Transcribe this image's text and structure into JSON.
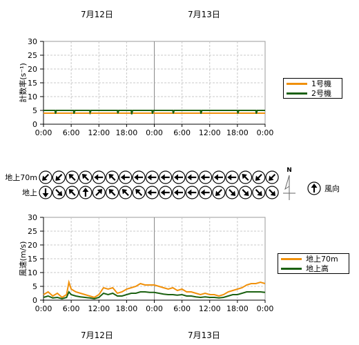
{
  "dates": {
    "top": [
      "7月12日",
      "7月13日"
    ],
    "bottom": [
      "7月12日",
      "7月13日"
    ]
  },
  "xticks": [
    "0:00",
    "6:00",
    "12:00",
    "18:00",
    "0:00",
    "6:00",
    "12:00",
    "18:00",
    "0:00"
  ],
  "wind_direction": {
    "rows": [
      {
        "label": "地上70m",
        "angles": [
          225,
          225,
          315,
          315,
          270,
          315,
          270,
          270,
          270,
          270,
          270,
          270,
          270,
          270,
          270,
          315,
          225,
          225
        ]
      },
      {
        "label": "地上",
        "angles": [
          180,
          135,
          315,
          0,
          45,
          315,
          315,
          315,
          270,
          270,
          270,
          270,
          270,
          225,
          135,
          135,
          135,
          135
        ]
      }
    ],
    "north_label": "N",
    "legend_label": "風向",
    "legend_angle": 0
  },
  "chart_data": [
    {
      "type": "line",
      "ylabel": "計数率(s⁻¹)",
      "ylim": [
        0,
        30
      ],
      "yticks": [
        0,
        5,
        10,
        15,
        20,
        25,
        30
      ],
      "xlim": [
        0,
        48
      ],
      "grid": true,
      "legend_position": "right",
      "series": [
        {
          "name": "1号機",
          "color": "#f0900a",
          "points": [
            [
              0,
              4
            ],
            [
              48,
              4
            ]
          ]
        },
        {
          "name": "2号機",
          "color": "#1a6010",
          "points": [
            [
              0,
              5
            ],
            [
              2.5,
              5
            ],
            [
              2.6,
              3.8
            ],
            [
              2.8,
              5
            ],
            [
              6.5,
              5
            ],
            [
              6.6,
              3.8
            ],
            [
              6.8,
              5
            ],
            [
              10,
              5
            ],
            [
              10.1,
              4.2
            ],
            [
              10.3,
              5
            ],
            [
              16,
              5
            ],
            [
              16.1,
              3.9
            ],
            [
              16.3,
              5
            ],
            [
              19,
              5
            ],
            [
              19.1,
              3.6
            ],
            [
              19.3,
              5
            ],
            [
              23.5,
              5
            ],
            [
              23.6,
              3.8
            ],
            [
              23.8,
              5
            ],
            [
              28,
              5
            ],
            [
              28.1,
              3.9
            ],
            [
              28.3,
              5
            ],
            [
              34,
              5
            ],
            [
              34.1,
              3.8
            ],
            [
              34.3,
              5
            ],
            [
              42,
              5
            ],
            [
              42.1,
              3.9
            ],
            [
              42.3,
              5
            ],
            [
              46,
              5
            ],
            [
              46.1,
              3.8
            ],
            [
              46.3,
              5
            ],
            [
              48,
              5
            ]
          ]
        }
      ]
    },
    {
      "type": "line",
      "ylabel": "風速(m/s)",
      "ylim": [
        0,
        30
      ],
      "yticks": [
        0,
        5,
        10,
        15,
        20,
        25,
        30
      ],
      "xlim": [
        0,
        48
      ],
      "grid": true,
      "legend_position": "right",
      "series": [
        {
          "name": "地上70m",
          "color": "#f0900a",
          "points": [
            [
              0,
              2
            ],
            [
              1,
              3
            ],
            [
              2,
              1.5
            ],
            [
              3,
              2.5
            ],
            [
              4,
              1
            ],
            [
              5,
              2
            ],
            [
              5.5,
              6.5
            ],
            [
              6,
              4
            ],
            [
              7,
              3
            ],
            [
              8,
              2.5
            ],
            [
              9,
              2
            ],
            [
              10,
              1.5
            ],
            [
              11,
              1
            ],
            [
              12,
              2
            ],
            [
              13,
              4.5
            ],
            [
              14,
              4
            ],
            [
              15,
              4.5
            ],
            [
              16,
              2.5
            ],
            [
              17,
              3
            ],
            [
              18,
              4
            ],
            [
              19,
              4.5
            ],
            [
              20,
              5
            ],
            [
              21,
              6
            ],
            [
              22,
              5.5
            ],
            [
              23,
              5.5
            ],
            [
              24,
              5.5
            ],
            [
              25,
              5
            ],
            [
              26,
              4.5
            ],
            [
              27,
              4
            ],
            [
              28,
              4.5
            ],
            [
              29,
              3.5
            ],
            [
              30,
              4
            ],
            [
              31,
              3
            ],
            [
              32,
              3
            ],
            [
              33,
              2.5
            ],
            [
              34,
              2
            ],
            [
              35,
              2.5
            ],
            [
              36,
              2
            ],
            [
              37,
              2
            ],
            [
              38,
              1.5
            ],
            [
              39,
              2
            ],
            [
              40,
              3
            ],
            [
              41,
              3.5
            ],
            [
              42,
              4
            ],
            [
              43,
              4.5
            ],
            [
              44,
              5.5
            ],
            [
              45,
              6
            ],
            [
              46,
              6
            ],
            [
              47,
              6.5
            ],
            [
              48,
              6
            ]
          ]
        },
        {
          "name": "地上高",
          "color": "#1a6010",
          "points": [
            [
              0,
              1
            ],
            [
              1,
              1.5
            ],
            [
              2,
              0.8
            ],
            [
              3,
              1
            ],
            [
              4,
              0.5
            ],
            [
              5,
              1
            ],
            [
              5.5,
              3
            ],
            [
              6,
              2
            ],
            [
              7,
              1.5
            ],
            [
              8,
              1.2
            ],
            [
              9,
              1
            ],
            [
              10,
              0.8
            ],
            [
              11,
              0.5
            ],
            [
              12,
              1
            ],
            [
              13,
              2.5
            ],
            [
              14,
              2
            ],
            [
              15,
              2.5
            ],
            [
              16,
              1.5
            ],
            [
              17,
              1.5
            ],
            [
              18,
              2
            ],
            [
              19,
              2.5
            ],
            [
              20,
              2.5
            ],
            [
              21,
              3
            ],
            [
              22,
              3
            ],
            [
              23,
              2.8
            ],
            [
              24,
              2.8
            ],
            [
              25,
              2.5
            ],
            [
              26,
              2.2
            ],
            [
              27,
              2
            ],
            [
              28,
              2
            ],
            [
              29,
              1.8
            ],
            [
              30,
              2
            ],
            [
              31,
              1.5
            ],
            [
              32,
              1.5
            ],
            [
              33,
              1.2
            ],
            [
              34,
              1
            ],
            [
              35,
              1.2
            ],
            [
              36,
              1
            ],
            [
              37,
              1
            ],
            [
              38,
              0.8
            ],
            [
              39,
              1
            ],
            [
              40,
              1.5
            ],
            [
              41,
              2
            ],
            [
              42,
              2
            ],
            [
              43,
              2.5
            ],
            [
              44,
              3
            ],
            [
              45,
              3
            ],
            [
              46,
              3
            ],
            [
              47,
              3
            ],
            [
              48,
              2.8
            ]
          ]
        }
      ]
    }
  ]
}
